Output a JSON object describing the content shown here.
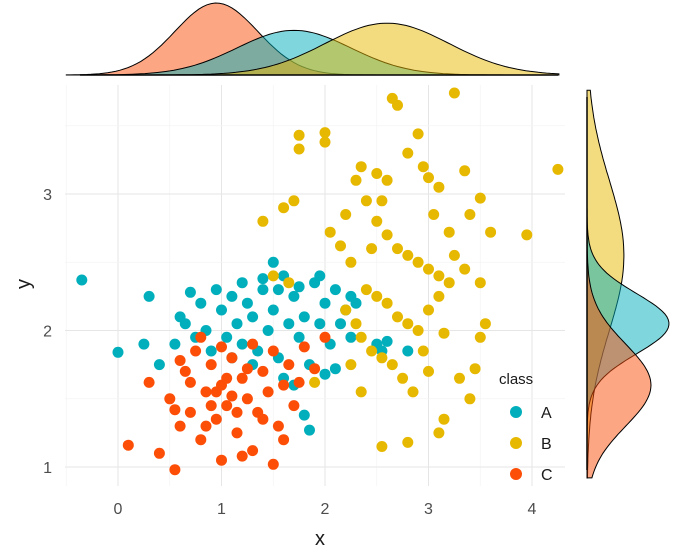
{
  "chart_data": {
    "type": "scatter",
    "title": "",
    "xlabel": "x",
    "ylabel": "y",
    "xlim": [
      -0.5,
      4.3
    ],
    "ylim": [
      0.92,
      3.78
    ],
    "x_ticks": [
      0,
      1,
      2,
      3,
      4
    ],
    "y_ticks": [
      1,
      2,
      3
    ],
    "grid": true,
    "legend": {
      "title": "class",
      "position": "right-bottom"
    },
    "marginal": {
      "type": "density",
      "top": "x",
      "right": "y"
    },
    "colors": {
      "A": "#00AFBB",
      "B": "#E7B800",
      "C": "#FC4E07"
    },
    "series": [
      {
        "name": "A",
        "color": "#00AFBB",
        "points": [
          [
            -0.35,
            2.37
          ],
          [
            0.0,
            1.84
          ],
          [
            0.25,
            1.9
          ],
          [
            0.3,
            2.25
          ],
          [
            0.4,
            1.75
          ],
          [
            0.55,
            1.9
          ],
          [
            0.65,
            2.05
          ],
          [
            0.7,
            2.28
          ],
          [
            0.8,
            2.2
          ],
          [
            0.85,
            2.0
          ],
          [
            0.9,
            1.85
          ],
          [
            0.95,
            2.3
          ],
          [
            1.0,
            2.15
          ],
          [
            1.05,
            1.95
          ],
          [
            1.1,
            2.25
          ],
          [
            1.15,
            2.05
          ],
          [
            1.2,
            1.9
          ],
          [
            1.25,
            2.2
          ],
          [
            1.3,
            2.1
          ],
          [
            1.35,
            1.85
          ],
          [
            1.4,
            2.3
          ],
          [
            1.45,
            2.0
          ],
          [
            1.5,
            2.15
          ],
          [
            1.55,
            1.8
          ],
          [
            1.6,
            2.4
          ],
          [
            1.65,
            2.05
          ],
          [
            1.7,
            2.25
          ],
          [
            1.75,
            1.95
          ],
          [
            1.8,
            2.1
          ],
          [
            1.85,
            1.75
          ],
          [
            1.9,
            2.35
          ],
          [
            1.95,
            2.05
          ],
          [
            2.0,
            2.2
          ],
          [
            2.05,
            1.9
          ],
          [
            2.1,
            2.3
          ],
          [
            2.15,
            2.05
          ],
          [
            2.2,
            2.15
          ],
          [
            2.25,
            1.95
          ],
          [
            2.3,
            2.2
          ],
          [
            2.1,
            1.72
          ],
          [
            2.0,
            1.68
          ],
          [
            1.8,
            1.38
          ],
          [
            1.85,
            1.27
          ],
          [
            1.7,
            1.6
          ],
          [
            1.6,
            1.65
          ],
          [
            1.5,
            2.5
          ],
          [
            1.4,
            2.38
          ],
          [
            1.3,
            1.75
          ],
          [
            1.2,
            2.35
          ],
          [
            1.1,
            1.8
          ],
          [
            2.5,
            1.9
          ],
          [
            2.55,
            1.85
          ],
          [
            2.8,
            1.85
          ],
          [
            2.6,
            1.92
          ],
          [
            0.6,
            2.1
          ],
          [
            0.75,
            1.95
          ],
          [
            1.55,
            2.3
          ],
          [
            1.75,
            2.32
          ],
          [
            1.95,
            2.4
          ],
          [
            2.25,
            2.25
          ]
        ]
      },
      {
        "name": "B",
        "color": "#E7B800",
        "points": [
          [
            1.75,
            3.43
          ],
          [
            1.75,
            3.33
          ],
          [
            2.0,
            3.45
          ],
          [
            2.0,
            3.38
          ],
          [
            2.35,
            3.2
          ],
          [
            2.5,
            3.15
          ],
          [
            2.6,
            3.1
          ],
          [
            2.65,
            3.7
          ],
          [
            2.7,
            3.65
          ],
          [
            2.8,
            3.3
          ],
          [
            2.9,
            3.44
          ],
          [
            3.0,
            3.12
          ],
          [
            3.1,
            3.05
          ],
          [
            3.25,
            3.74
          ],
          [
            3.35,
            3.17
          ],
          [
            3.5,
            2.97
          ],
          [
            3.6,
            2.72
          ],
          [
            3.95,
            2.7
          ],
          [
            4.25,
            3.18
          ],
          [
            2.3,
            3.1
          ],
          [
            2.4,
            2.95
          ],
          [
            2.2,
            2.85
          ],
          [
            2.5,
            2.8
          ],
          [
            2.6,
            2.7
          ],
          [
            2.7,
            2.6
          ],
          [
            2.8,
            2.55
          ],
          [
            2.9,
            2.5
          ],
          [
            3.0,
            2.45
          ],
          [
            3.1,
            2.4
          ],
          [
            3.2,
            2.35
          ],
          [
            2.4,
            2.3
          ],
          [
            2.5,
            2.25
          ],
          [
            2.6,
            2.2
          ],
          [
            2.7,
            2.1
          ],
          [
            2.8,
            2.05
          ],
          [
            2.9,
            2.0
          ],
          [
            3.0,
            2.15
          ],
          [
            3.1,
            2.25
          ],
          [
            3.25,
            2.55
          ],
          [
            3.35,
            2.45
          ],
          [
            3.5,
            2.35
          ],
          [
            3.55,
            2.05
          ],
          [
            2.2,
            2.15
          ],
          [
            2.3,
            2.05
          ],
          [
            2.35,
            1.95
          ],
          [
            2.45,
            1.85
          ],
          [
            2.55,
            1.8
          ],
          [
            2.65,
            1.75
          ],
          [
            2.75,
            1.65
          ],
          [
            2.85,
            1.55
          ],
          [
            3.3,
            1.65
          ],
          [
            3.4,
            1.5
          ],
          [
            3.45,
            1.72
          ],
          [
            3.15,
            1.35
          ],
          [
            3.1,
            1.25
          ],
          [
            2.8,
            1.18
          ],
          [
            2.55,
            1.15
          ],
          [
            1.9,
            1.62
          ],
          [
            1.5,
            2.4
          ],
          [
            1.65,
            2.35
          ],
          [
            1.4,
            2.8
          ],
          [
            1.6,
            2.9
          ],
          [
            1.7,
            2.95
          ],
          [
            2.05,
            2.72
          ],
          [
            2.15,
            2.62
          ],
          [
            2.25,
            2.5
          ],
          [
            3.05,
            2.85
          ],
          [
            3.2,
            2.72
          ],
          [
            3.4,
            2.85
          ],
          [
            3.0,
            1.7
          ],
          [
            2.25,
            1.75
          ],
          [
            2.35,
            1.55
          ],
          [
            3.5,
            1.95
          ],
          [
            2.95,
            1.85
          ],
          [
            3.15,
            1.98
          ],
          [
            2.45,
            2.6
          ],
          [
            2.55,
            2.95
          ],
          [
            2.95,
            3.2
          ]
        ]
      },
      {
        "name": "C",
        "color": "#FC4E07",
        "points": [
          [
            0.1,
            1.16
          ],
          [
            0.3,
            1.62
          ],
          [
            0.4,
            1.1
          ],
          [
            0.5,
            1.5
          ],
          [
            0.55,
            0.98
          ],
          [
            0.6,
            1.3
          ],
          [
            0.65,
            1.7
          ],
          [
            0.7,
            1.4
          ],
          [
            0.75,
            1.85
          ],
          [
            0.8,
            1.2
          ],
          [
            0.85,
            1.55
          ],
          [
            0.9,
            1.75
          ],
          [
            0.95,
            1.35
          ],
          [
            1.0,
            1.6
          ],
          [
            1.05,
            1.45
          ],
          [
            1.1,
            1.8
          ],
          [
            1.15,
            1.25
          ],
          [
            1.2,
            1.65
          ],
          [
            1.25,
            1.5
          ],
          [
            1.3,
            1.9
          ],
          [
            1.35,
            1.4
          ],
          [
            1.4,
            1.7
          ],
          [
            1.45,
            1.55
          ],
          [
            1.5,
            1.85
          ],
          [
            1.55,
            1.3
          ],
          [
            1.6,
            1.6
          ],
          [
            1.65,
            1.75
          ],
          [
            0.8,
            1.95
          ],
          [
            1.0,
            1.05
          ],
          [
            1.2,
            1.08
          ],
          [
            1.3,
            1.12
          ],
          [
            1.6,
            1.2
          ],
          [
            0.7,
            1.62
          ],
          [
            0.9,
            1.45
          ],
          [
            1.0,
            1.88
          ],
          [
            1.1,
            1.52
          ],
          [
            1.25,
            1.72
          ],
          [
            1.4,
            1.35
          ],
          [
            1.7,
            1.45
          ],
          [
            1.75,
            1.62
          ],
          [
            0.6,
            1.78
          ],
          [
            0.55,
            1.42
          ],
          [
            1.5,
            1.02
          ],
          [
            1.8,
            1.88
          ],
          [
            2.0,
            1.95
          ],
          [
            1.9,
            1.72
          ],
          [
            1.05,
            1.65
          ],
          [
            0.85,
            1.3
          ],
          [
            1.15,
            1.4
          ],
          [
            0.95,
            1.55
          ]
        ]
      }
    ],
    "density_x": [
      {
        "name": "A",
        "peak_at": 1.7,
        "spread": 0.55
      },
      {
        "name": "B",
        "peak_at": 2.6,
        "spread": 0.6
      },
      {
        "name": "C",
        "peak_at": 0.95,
        "spread": 0.4
      }
    ],
    "density_y": [
      {
        "name": "A",
        "peak_at": 2.05,
        "spread": 0.22
      },
      {
        "name": "B",
        "peak_at": 2.55,
        "spread": 0.55
      },
      {
        "name": "C",
        "peak_at": 1.6,
        "spread": 0.3
      }
    ]
  }
}
